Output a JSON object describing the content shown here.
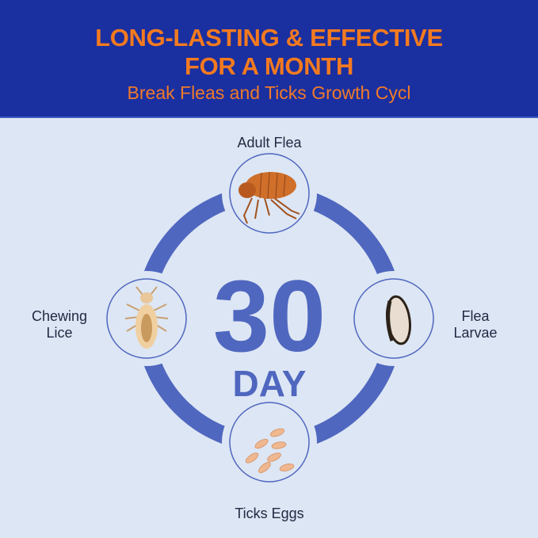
{
  "header": {
    "title_line1": "LONG-LASTING & EFFECTIVE",
    "title_line2": "FOR A MONTH",
    "subtitle": "Break Fleas and Ticks Growth Cycl"
  },
  "center": {
    "number": "30",
    "unit": "DAY"
  },
  "stages": {
    "top": {
      "label": "Adult Flea",
      "icon": "adult-flea-icon"
    },
    "right": {
      "label_line1": "Flea",
      "label_line2": "Larvae",
      "icon": "flea-larvae-icon"
    },
    "bottom": {
      "label": "Ticks Eggs",
      "icon": "tick-eggs-icon"
    },
    "left": {
      "label_line1": "Chewing",
      "label_line2": "Lice",
      "icon": "chewing-lice-icon"
    }
  },
  "colors": {
    "header_bg": "#1a2fa0",
    "accent": "#f47a20",
    "ring": "#4f67bf",
    "background": "#dde6f4"
  }
}
